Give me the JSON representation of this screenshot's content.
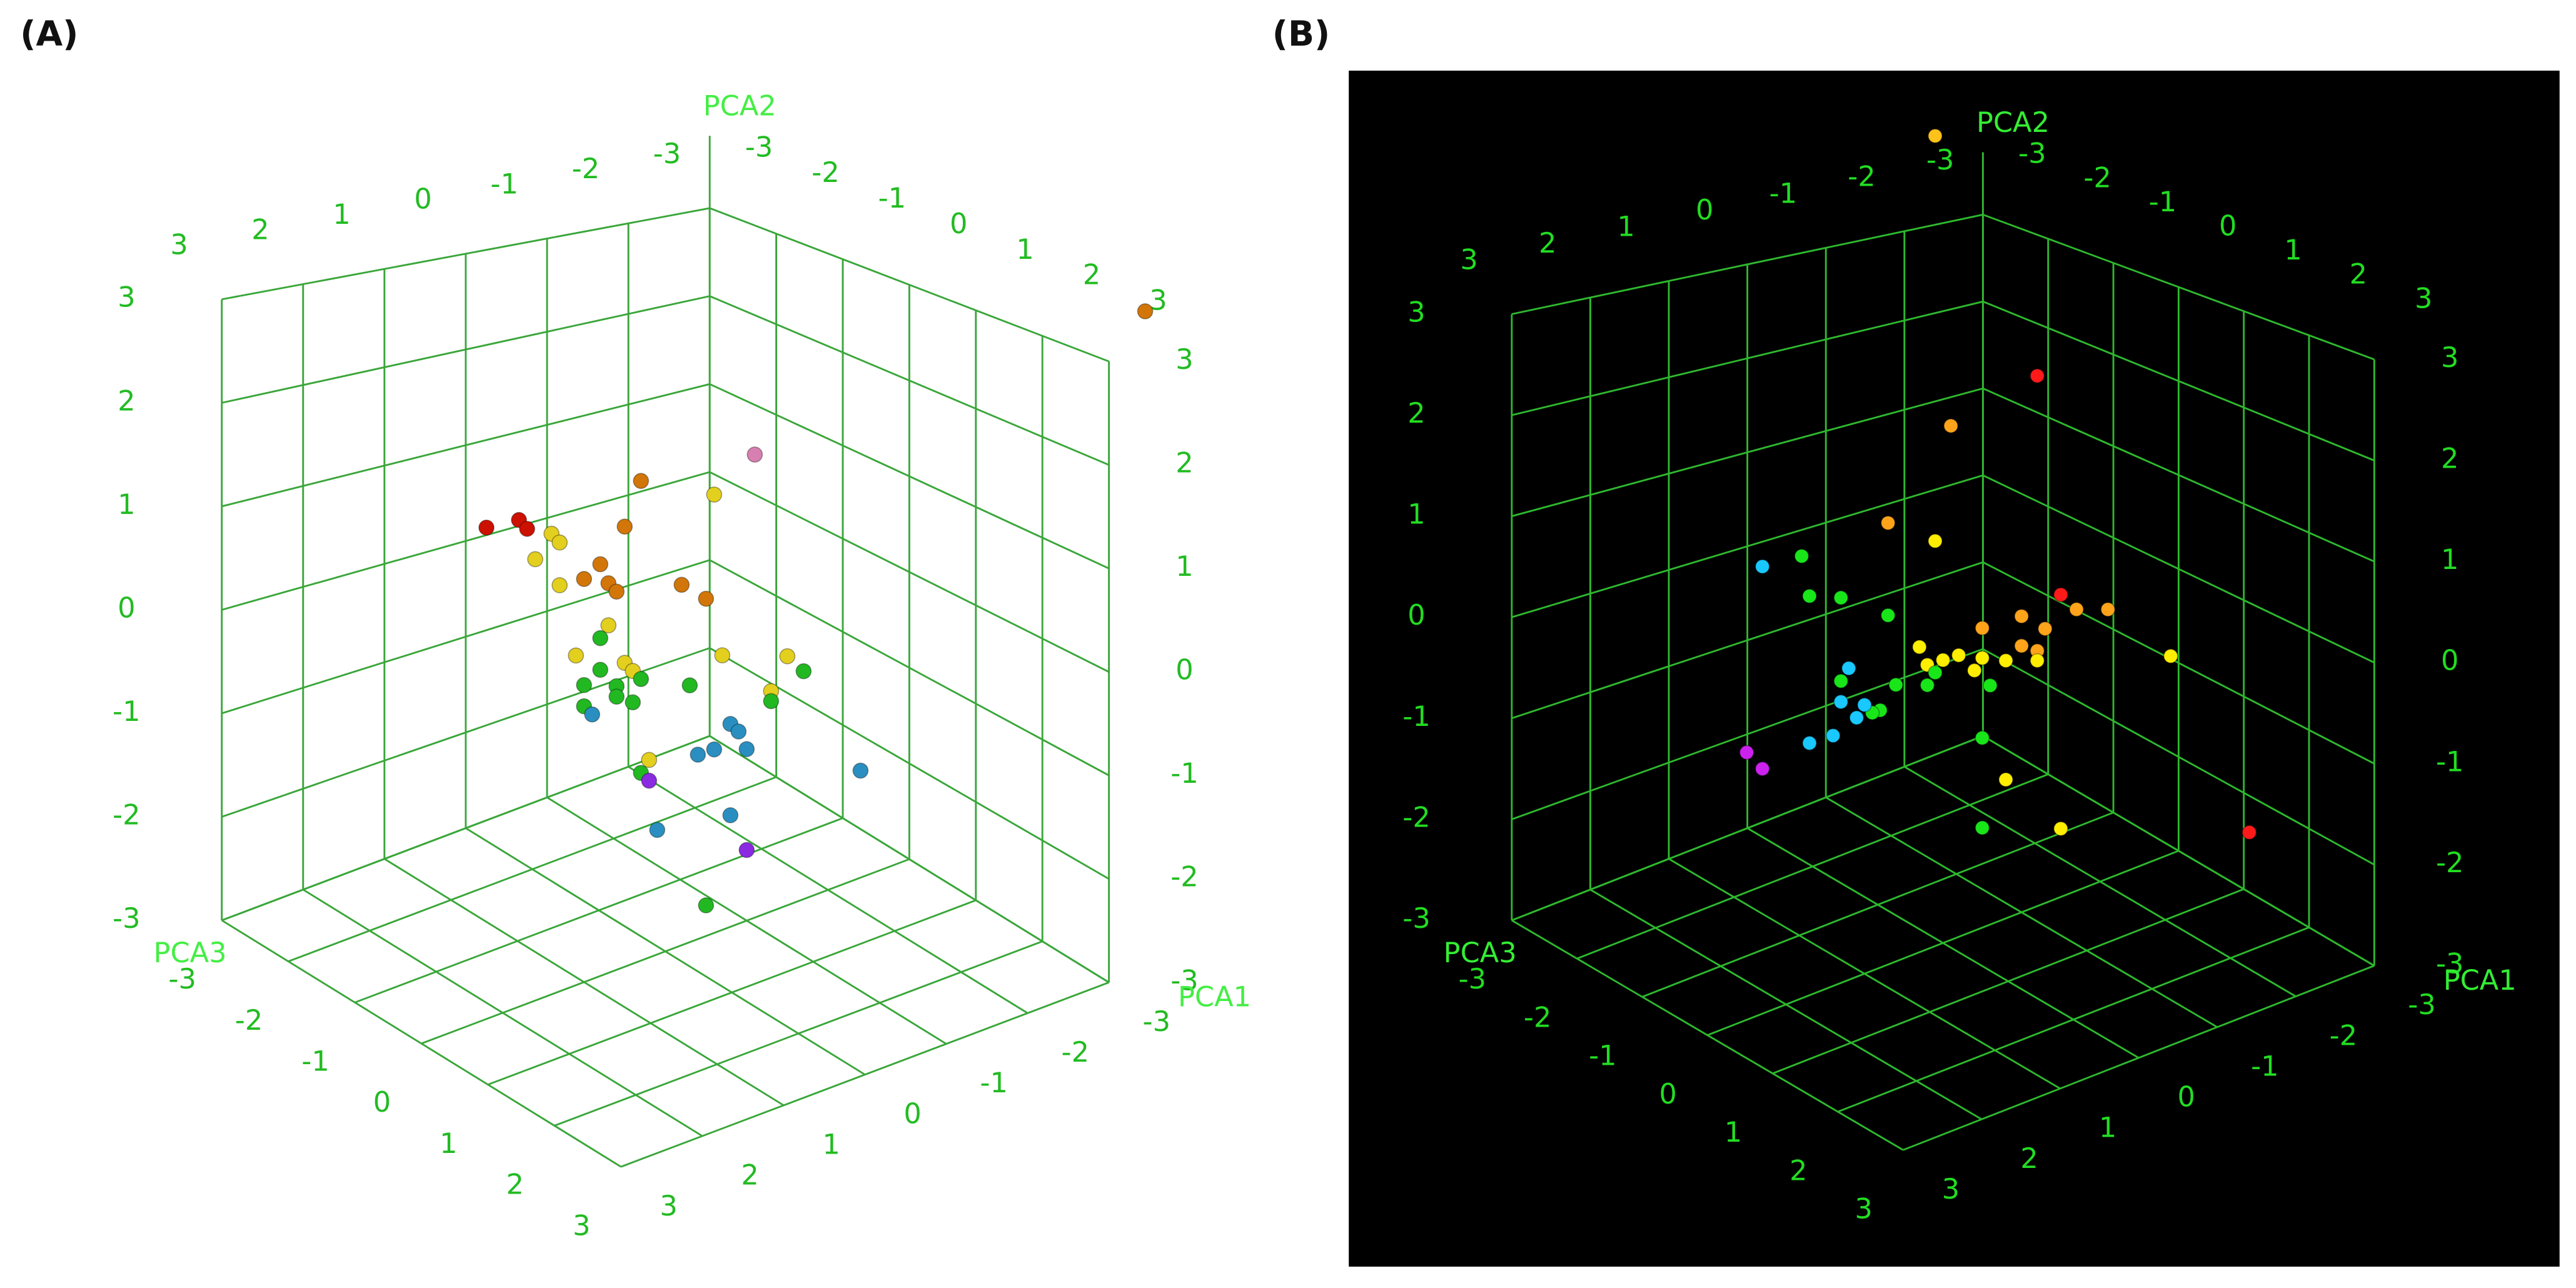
{
  "chart_data": [
    {
      "type": "scatter3d",
      "label": "(A)",
      "background": "#ffffff",
      "grid_color": "#3aa63a",
      "tick_color": "#22bb22",
      "axis_title_color": "#44ee44",
      "xlabel": "PCA1",
      "ylabel": "PCA2",
      "zlabel": "PCA3",
      "xlim": [
        -3,
        3
      ],
      "ylim": [
        -3,
        3
      ],
      "zlim": [
        -3,
        3
      ],
      "xticks": [
        -3,
        -2,
        -1,
        0,
        1,
        2,
        3
      ],
      "yticks": [
        -3,
        -2,
        -1,
        0,
        1,
        2,
        3
      ],
      "zticks": [
        -3,
        -2,
        -1,
        0,
        1,
        2,
        3
      ],
      "points": {
        "x": [
          2.2,
          1.8,
          1.7,
          1.4,
          1.3,
          1.6,
          0.5,
          0.3,
          0.8,
          1.0,
          0.7,
          0.6,
          -0.2,
          -0.5,
          -0.6,
          -1.1,
          1.3,
          0.7,
          0.8,
          1.1,
          0.5,
          0.4,
          -0.7,
          -1.5,
          -1.3,
          1.0,
          0.8,
          0.6,
          0.3,
          -0.3,
          0.6,
          0.4,
          1.0,
          -1.3,
          -1.7,
          0.9,
          -0.8,
          -0.6,
          -0.9,
          -1.0,
          -0.4,
          -2.4,
          -0.8,
          0.1,
          0.2,
          0.3,
          0.2,
          -1.0,
          -0.5,
          -5.9
        ],
        "y": [
          1.5,
          1.5,
          1.4,
          1.3,
          1.2,
          1.1,
          1.2,
          1.6,
          0.9,
          0.8,
          0.7,
          0.6,
          0.5,
          0.3,
          1.3,
          1.6,
          0.8,
          0.3,
          0.2,
          0.1,
          -0.1,
          -0.2,
          -0.3,
          -0.5,
          -0.8,
          -0.2,
          -0.1,
          -0.3,
          -0.3,
          -0.5,
          -0.4,
          -0.5,
          -0.4,
          -0.9,
          -0.7,
          -0.5,
          -1.0,
          -1.2,
          -1.1,
          -1.3,
          -1.2,
          -1.9,
          -1.9,
          -1.8,
          -1.1,
          -1.2,
          -1.3,
          -2.3,
          -2.7,
          2.2
        ],
        "z": [
          0,
          0,
          0,
          0,
          0,
          0,
          0,
          0,
          0,
          0,
          0,
          0,
          0,
          0,
          0,
          0,
          0,
          0,
          0,
          0,
          0,
          0,
          0,
          0,
          0,
          0,
          0,
          0,
          0,
          0,
          0,
          0,
          0,
          0,
          0,
          0,
          0,
          0,
          0,
          0,
          0,
          0,
          0,
          0,
          0,
          0,
          0,
          0,
          0,
          0
        ],
        "colors": [
          "#cc1100",
          "#cc1100",
          "#cc1100",
          "#e3cf1e",
          "#e3cf1e",
          "#e3cf1e",
          "#d2760a",
          "#d2760a",
          "#d2760a",
          "#d2760a",
          "#d2760a",
          "#d2760a",
          "#d2760a",
          "#d2760a",
          "#e3cf1e",
          "#d77fb0",
          "#e3cf1e",
          "#e3cf1e",
          "#22b822",
          "#e3cf1e",
          "#e3cf1e",
          "#e3cf1e",
          "#e3cf1e",
          "#e3cf1e",
          "#e3cf1e",
          "#22b822",
          "#22b822",
          "#22b822",
          "#22b822",
          "#22b822",
          "#22b822",
          "#22b822",
          "#22b822",
          "#22b822",
          "#22b822",
          "#2a8fc0",
          "#2a8fc0",
          "#2a8fc0",
          "#2a8fc0",
          "#2a8fc0",
          "#2a8fc0",
          "#2a8fc0",
          "#2a8fc0",
          "#2a8fc0",
          "#e3cf1e",
          "#22b822",
          "#8a2be2",
          "#8a2be2",
          "#22b822",
          "#d2760a"
        ]
      }
    },
    {
      "type": "scatter3d",
      "label": "(B)",
      "background": "#000000",
      "grid_color": "#2eb82e",
      "tick_color": "#22dd22",
      "axis_title_color": "#33ee33",
      "xlabel": "PCA1",
      "ylabel": "PCA2",
      "zlabel": "PCA3",
      "xlim": [
        -3,
        3
      ],
      "ylim": [
        -3,
        3
      ],
      "zlim": [
        -3,
        3
      ],
      "xticks": [
        -3,
        -2,
        -1,
        0,
        1,
        2,
        3
      ],
      "yticks": [
        -3,
        -2,
        -1,
        0,
        1,
        2,
        3
      ],
      "zticks": [
        -3,
        -2,
        -1,
        0,
        1,
        2,
        3
      ],
      "points": {
        "x": [
          0.1,
          -1.2,
          -0.1,
          0.7,
          0.1,
          1.8,
          2.3,
          1.7,
          1.3,
          0.7,
          -1.5,
          -1.7,
          -2.1,
          -0.5,
          -1.0,
          -1.3,
          0.3,
          0.0,
          0.2,
          -0.2,
          -0.5,
          -0.8,
          -0.4,
          -1.0,
          -1.2,
          -1.2,
          -2.9,
          1.3,
          0.6,
          0.2,
          0.1,
          -0.6,
          0.8,
          0.9,
          1.2,
          1.3,
          1.0,
          1.1,
          1.4,
          1.7,
          2.5,
          2.3,
          -0.5,
          -0.8,
          -1.5,
          -0.5,
          -3.9
        ],
        "y": [
          5.0,
          2.4,
          2.1,
          1.3,
          1.0,
          1.2,
          1.2,
          0.8,
          0.7,
          0.4,
          0.1,
          -0.1,
          -0.2,
          0.0,
          0.0,
          -0.2,
          0.0,
          -0.2,
          -0.2,
          -0.2,
          -0.3,
          -0.4,
          -0.4,
          -0.3,
          -0.4,
          -0.5,
          -0.9,
          -0.1,
          -0.3,
          -0.4,
          -0.3,
          -0.6,
          -0.5,
          -0.5,
          0.0,
          -0.3,
          -0.4,
          -0.5,
          -0.6,
          -0.6,
          -0.5,
          -0.7,
          -1.1,
          -1.6,
          -2.3,
          -2.0,
          -3.1
        ],
        "z": [
          0,
          0,
          0,
          0,
          0,
          0,
          0,
          0,
          0,
          0,
          0,
          0,
          0,
          0,
          0,
          0,
          0,
          0,
          0,
          0,
          0,
          0,
          0,
          0,
          0,
          0,
          0,
          0,
          0,
          0,
          0,
          0,
          0,
          0,
          0,
          0,
          0,
          0,
          0,
          0,
          0,
          0,
          0,
          0,
          0,
          0,
          0
        ],
        "colors": [
          "#ffc21a",
          "#ff1a1a",
          "#ffa41a",
          "#ffa41a",
          "#ffee00",
          "#19e619",
          "#19c8ff",
          "#19e619",
          "#19e619",
          "#19e619",
          "#ff1a1a",
          "#ffa41a",
          "#ffa41a",
          "#ffa41a",
          "#ffa41a",
          "#ffa41a",
          "#ffee00",
          "#ffee00",
          "#ffee00",
          "#ffee00",
          "#ffee00",
          "#ffee00",
          "#ffee00",
          "#ffa41a",
          "#ffa41a",
          "#ffee00",
          "#ffee00",
          "#19e619",
          "#19e619",
          "#19e619",
          "#19e619",
          "#19e619",
          "#19e619",
          "#19e619",
          "#19c8ff",
          "#19c8ff",
          "#19c8ff",
          "#19c8ff",
          "#19c8ff",
          "#19c8ff",
          "#cc22ee",
          "#cc22ee",
          "#19e619",
          "#ffee00",
          "#ffee00",
          "#19e619",
          "#ff1a1a"
        ]
      }
    }
  ]
}
